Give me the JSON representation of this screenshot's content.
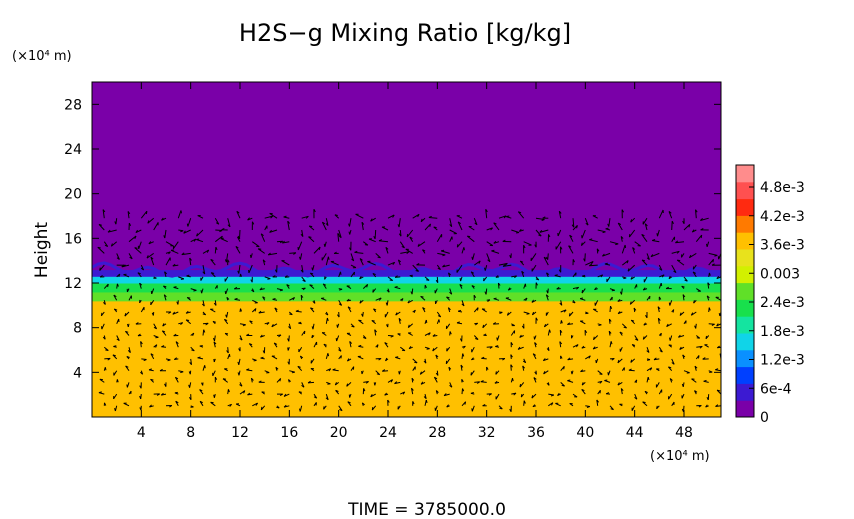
{
  "chart_data": {
    "type": "heatmap",
    "title": "H2S−g Mixing Ratio [kg/kg]",
    "ylabel": "Height",
    "xunit": "(×10⁴ m)",
    "yunit": "(×10⁴ m)",
    "time_label": "TIME  =  3785000.0",
    "xlim": [
      0,
      51
    ],
    "ylim": [
      0,
      30
    ],
    "x_ticks": [
      "4",
      "8",
      "12",
      "16",
      "20",
      "24",
      "28",
      "32",
      "36",
      "40",
      "44",
      "48"
    ],
    "y_ticks": [
      "4",
      "8",
      "12",
      "16",
      "20",
      "24",
      "28"
    ],
    "layers": [
      {
        "from": 0,
        "to": 10.4,
        "value": 0.0036
      },
      {
        "from": 10.4,
        "to": 11.2,
        "value": 0.0027
      },
      {
        "from": 11.2,
        "to": 12.0,
        "value": 0.0022
      },
      {
        "from": 12.0,
        "to": 12.6,
        "value": 0.0016
      },
      {
        "from": 12.6,
        "to": 13.2,
        "value": 0.0006
      },
      {
        "from": 13.2,
        "to": 30,
        "value": 0
      }
    ],
    "colorbar": {
      "min": 0,
      "max": 0.0051,
      "labels": [
        "4.8e-3",
        "4.2e-3",
        "3.6e-3",
        "0.003",
        "2.4e-3",
        "1.8e-3",
        "1.2e-3",
        "6e-4",
        "0"
      ],
      "colors": [
        "#7a00a8",
        "#3c1ad2",
        "#0040ff",
        "#0a90ff",
        "#10d4e8",
        "#14e4a0",
        "#18e04c",
        "#60e028",
        "#d2f000",
        "#e8e21c",
        "#ffc000",
        "#ff7a00",
        "#ff2a10",
        "#ff5050",
        "#ff8c8c"
      ]
    }
  }
}
